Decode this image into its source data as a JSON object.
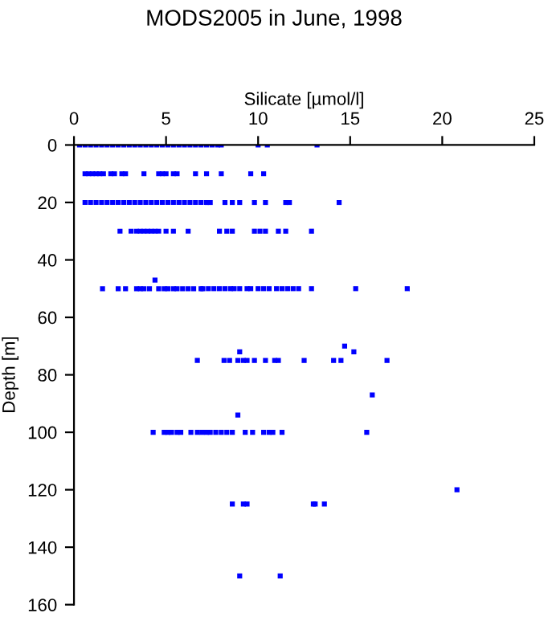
{
  "chart_data": {
    "type": "scatter",
    "title": "MODS2005 in June, 1998",
    "xlabel": "Silicate [µmol/l]",
    "ylabel": "Depth [m]",
    "xlim": [
      0,
      25
    ],
    "xticks": [
      0,
      5,
      10,
      15,
      20,
      25
    ],
    "ylim": [
      160,
      0
    ],
    "yticks": [
      0,
      20,
      40,
      60,
      80,
      100,
      120,
      140,
      160
    ],
    "grid": false,
    "legend": false,
    "marker": "square",
    "series": [
      {
        "color": "#0000ff",
        "x": [
          0.3,
          0.6,
          0.9,
          1.2,
          1.5,
          1.8,
          2.1,
          2.4,
          2.7,
          3.0,
          3.3,
          3.6,
          3.9,
          4.2,
          4.5,
          4.8,
          5.1,
          5.4,
          5.7,
          6.0,
          6.3,
          6.6,
          6.9,
          7.2,
          7.5,
          7.8,
          8.0,
          10.0,
          10.5,
          13.2,
          0.6,
          0.8,
          1.0,
          1.2,
          1.4,
          1.6,
          2.0,
          2.2,
          2.6,
          2.8,
          3.8,
          4.6,
          4.8,
          5.0,
          5.4,
          5.6,
          6.6,
          7.2,
          8.0,
          9.6,
          10.3,
          0.6,
          0.9,
          1.2,
          1.5,
          1.8,
          2.1,
          2.4,
          2.7,
          3.0,
          3.3,
          3.6,
          3.9,
          4.2,
          4.5,
          4.8,
          5.1,
          5.4,
          5.7,
          6.0,
          6.3,
          6.6,
          6.9,
          7.2,
          7.4,
          8.2,
          8.6,
          9.0,
          9.8,
          10.4,
          11.5,
          11.7,
          14.4,
          2.5,
          3.1,
          3.4,
          3.6,
          3.8,
          4.0,
          4.2,
          4.4,
          4.6,
          5.0,
          5.4,
          6.2,
          7.9,
          8.3,
          8.6,
          9.8,
          10.1,
          10.4,
          11.1,
          11.5,
          12.9,
          4.4,
          1.55,
          2.4,
          2.8,
          3.4,
          3.6,
          3.8,
          4.1,
          4.6,
          4.9,
          5.1,
          5.4,
          5.6,
          5.9,
          6.2,
          6.5,
          6.9,
          7.0,
          7.3,
          7.6,
          7.9,
          8.2,
          8.5,
          8.7,
          9.0,
          9.4,
          9.6,
          10.0,
          10.3,
          10.6,
          11.0,
          11.3,
          11.6,
          11.9,
          12.2,
          12.9,
          15.3,
          18.1,
          6.7,
          8.15,
          8.45,
          8.9,
          9.2,
          9.4,
          9.8,
          10.4,
          10.9,
          11.1,
          12.5,
          14.1,
          14.5,
          17.0,
          9.0,
          14.7,
          15.2,
          16.2,
          8.9,
          4.3,
          4.9,
          5.1,
          5.3,
          5.6,
          5.8,
          6.35,
          6.7,
          6.95,
          7.2,
          7.4,
          7.7,
          8.0,
          8.3,
          8.6,
          9.3,
          9.7,
          10.3,
          10.6,
          10.8,
          11.3,
          15.9,
          8.6,
          9.2,
          9.4,
          13.0,
          13.1,
          13.6,
          20.8,
          9.0,
          11.2
        ],
        "values": [
          0,
          0,
          0,
          0,
          0,
          0,
          0,
          0,
          0,
          0,
          0,
          0,
          0,
          0,
          0,
          0,
          0,
          0,
          0,
          0,
          0,
          0,
          0,
          0,
          0,
          0,
          0,
          0,
          0,
          0,
          10,
          10,
          10,
          10,
          10,
          10,
          10,
          10,
          10,
          10,
          10,
          10,
          10,
          10,
          10,
          10,
          10,
          10,
          10,
          10,
          10,
          20,
          20,
          20,
          20,
          20,
          20,
          20,
          20,
          20,
          20,
          20,
          20,
          20,
          20,
          20,
          20,
          20,
          20,
          20,
          20,
          20,
          20,
          20,
          20,
          20,
          20,
          20,
          20,
          20,
          20,
          20,
          20,
          30,
          30,
          30,
          30,
          30,
          30,
          30,
          30,
          30,
          30,
          30,
          30,
          30,
          30,
          30,
          30,
          30,
          30,
          30,
          30,
          30,
          47,
          50,
          50,
          50,
          50,
          50,
          50,
          50,
          50,
          50,
          50,
          50,
          50,
          50,
          50,
          50,
          50,
          50,
          50,
          50,
          50,
          50,
          50,
          50,
          50,
          50,
          50,
          50,
          50,
          50,
          50,
          50,
          50,
          50,
          50,
          50,
          50,
          50,
          75,
          75,
          75,
          75,
          75,
          75,
          75,
          75,
          75,
          75,
          75,
          75,
          75,
          75,
          72,
          70,
          72,
          87,
          94,
          100,
          100,
          100,
          100,
          100,
          100,
          100,
          100,
          100,
          100,
          100,
          100,
          100,
          100,
          100,
          100,
          100,
          100,
          100,
          100,
          100,
          100,
          125,
          125,
          125,
          125,
          125,
          125,
          120,
          150,
          150
        ]
      }
    ]
  }
}
